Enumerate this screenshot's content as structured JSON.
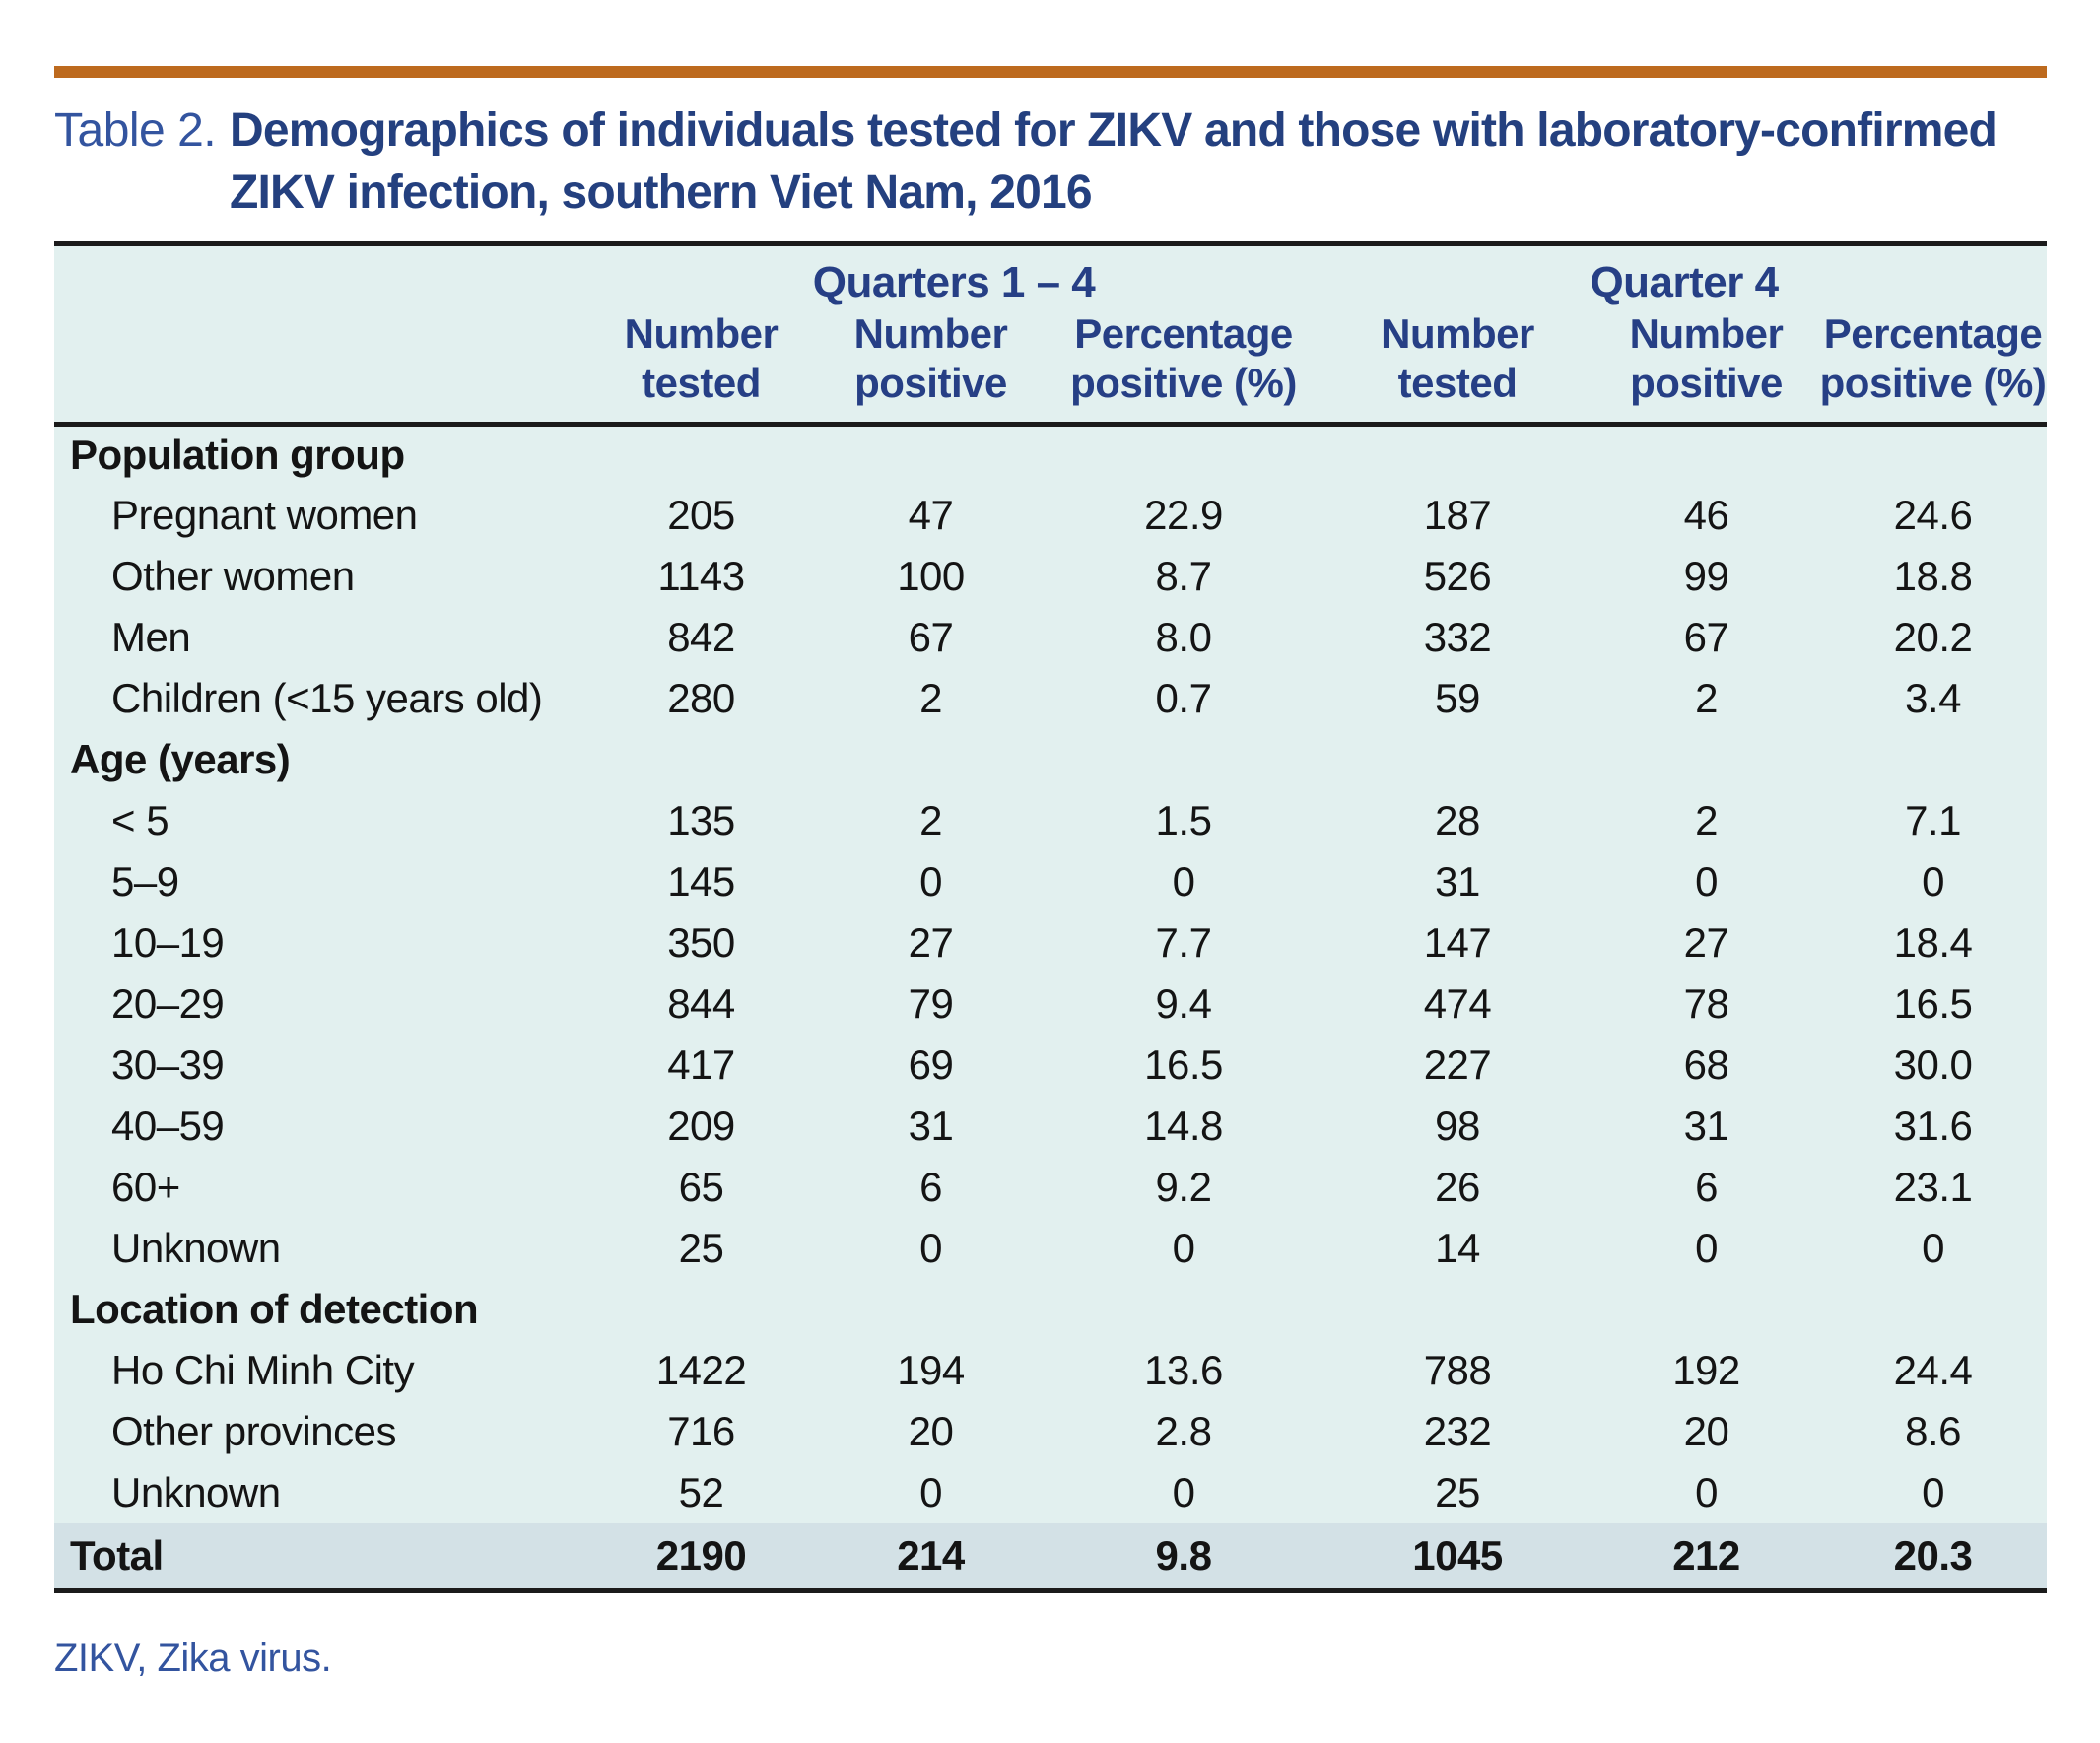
{
  "page": {
    "table_label": "Table 2.",
    "title": "Demographics of individuals tested for ZIKV and those with laboratory-confirmed ZIKV infection, southern Viet Nam, 2016",
    "footnote": "ZIKV, Zika virus."
  },
  "colors": {
    "accent_bar": "#bd6a1e",
    "title_navy": "#24407f",
    "label_blue": "#33549f",
    "table_bg": "#e2f0ef",
    "total_row_bg": "#d3e1e6",
    "rule_black": "#1b1b1b"
  },
  "table": {
    "group_headers": [
      {
        "label": "Quarters 1 – 4"
      },
      {
        "label": "Quarter 4"
      }
    ],
    "column_headers": [
      "Number tested",
      "Number positive",
      "Percentage positive (%)",
      "Number tested",
      "Number positive",
      "Percentage positive (%)"
    ],
    "sections": [
      {
        "heading": "Population group",
        "rows": [
          {
            "label": "Pregnant women",
            "values": [
              "205",
              "47",
              "22.9",
              "187",
              "46",
              "24.6"
            ]
          },
          {
            "label": "Other women",
            "values": [
              "1143",
              "100",
              "8.7",
              "526",
              "99",
              "18.8"
            ]
          },
          {
            "label": "Men",
            "values": [
              "842",
              "67",
              "8.0",
              "332",
              "67",
              "20.2"
            ]
          },
          {
            "label": "Children (<15 years old)",
            "values": [
              "280",
              "2",
              "0.7",
              "59",
              "2",
              "3.4"
            ]
          }
        ]
      },
      {
        "heading": "Age (years)",
        "rows": [
          {
            "label": "< 5",
            "values": [
              "135",
              "2",
              "1.5",
              "28",
              "2",
              "7.1"
            ]
          },
          {
            "label": "5–9",
            "values": [
              "145",
              "0",
              "0",
              "31",
              "0",
              "0"
            ]
          },
          {
            "label": "10–19",
            "values": [
              "350",
              "27",
              "7.7",
              "147",
              "27",
              "18.4"
            ]
          },
          {
            "label": "20–29",
            "values": [
              "844",
              "79",
              "9.4",
              "474",
              "78",
              "16.5"
            ]
          },
          {
            "label": "30–39",
            "values": [
              "417",
              "69",
              "16.5",
              "227",
              "68",
              "30.0"
            ]
          },
          {
            "label": "40–59",
            "values": [
              "209",
              "31",
              "14.8",
              "98",
              "31",
              "31.6"
            ]
          },
          {
            "label": "60+",
            "values": [
              "65",
              "6",
              "9.2",
              "26",
              "6",
              "23.1"
            ]
          },
          {
            "label": "Unknown",
            "values": [
              "25",
              "0",
              "0",
              "14",
              "0",
              "0"
            ]
          }
        ]
      },
      {
        "heading": "Location of detection",
        "rows": [
          {
            "label": "Ho Chi Minh City",
            "values": [
              "1422",
              "194",
              "13.6",
              "788",
              "192",
              "24.4"
            ]
          },
          {
            "label": "Other provinces",
            "values": [
              "716",
              "20",
              "2.8",
              "232",
              "20",
              "8.6"
            ]
          },
          {
            "label": "Unknown",
            "values": [
              "52",
              "0",
              "0",
              "25",
              "0",
              "0"
            ]
          }
        ]
      }
    ],
    "total_row": {
      "label": "Total",
      "values": [
        "2190",
        "214",
        "9.8",
        "1045",
        "212",
        "20.3"
      ]
    }
  }
}
